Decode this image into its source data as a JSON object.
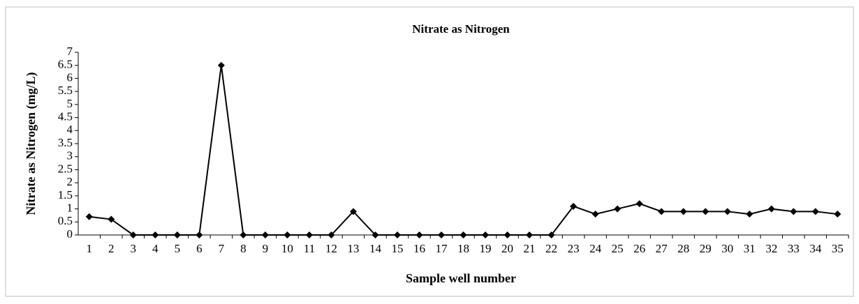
{
  "chart_data": {
    "type": "line",
    "title": "Nitrate as Nitrogen",
    "x_label": "Sample well number",
    "y_label": "Nitrate as Nitrogen (mg/L)",
    "categories": [
      "1",
      "2",
      "3",
      "4",
      "5",
      "6",
      "7",
      "8",
      "9",
      "10",
      "11",
      "12",
      "13",
      "14",
      "15",
      "16",
      "17",
      "18",
      "19",
      "20",
      "21",
      "22",
      "23",
      "24",
      "25",
      "26",
      "27",
      "28",
      "29",
      "30",
      "31",
      "32",
      "33",
      "34",
      "35"
    ],
    "series": [
      {
        "name": "Nitrate as Nitrogen",
        "color": "#000000",
        "values": [
          0.7,
          0.6,
          0,
          0,
          0,
          0,
          6.5,
          0,
          0,
          0,
          0,
          0,
          0.9,
          0,
          0,
          0,
          0,
          0,
          0,
          0,
          0,
          0,
          1.1,
          0.8,
          1.0,
          1.2,
          0.9,
          0.9,
          0.9,
          0.9,
          0.8,
          1.0,
          0.9,
          0.9,
          0.8
        ]
      }
    ],
    "ylim": [
      0,
      7
    ],
    "yticks": [
      0,
      0.5,
      1,
      1.5,
      2,
      2.5,
      3,
      3.5,
      4,
      4.5,
      5,
      5.5,
      6,
      6.5,
      7
    ],
    "grid": false
  }
}
